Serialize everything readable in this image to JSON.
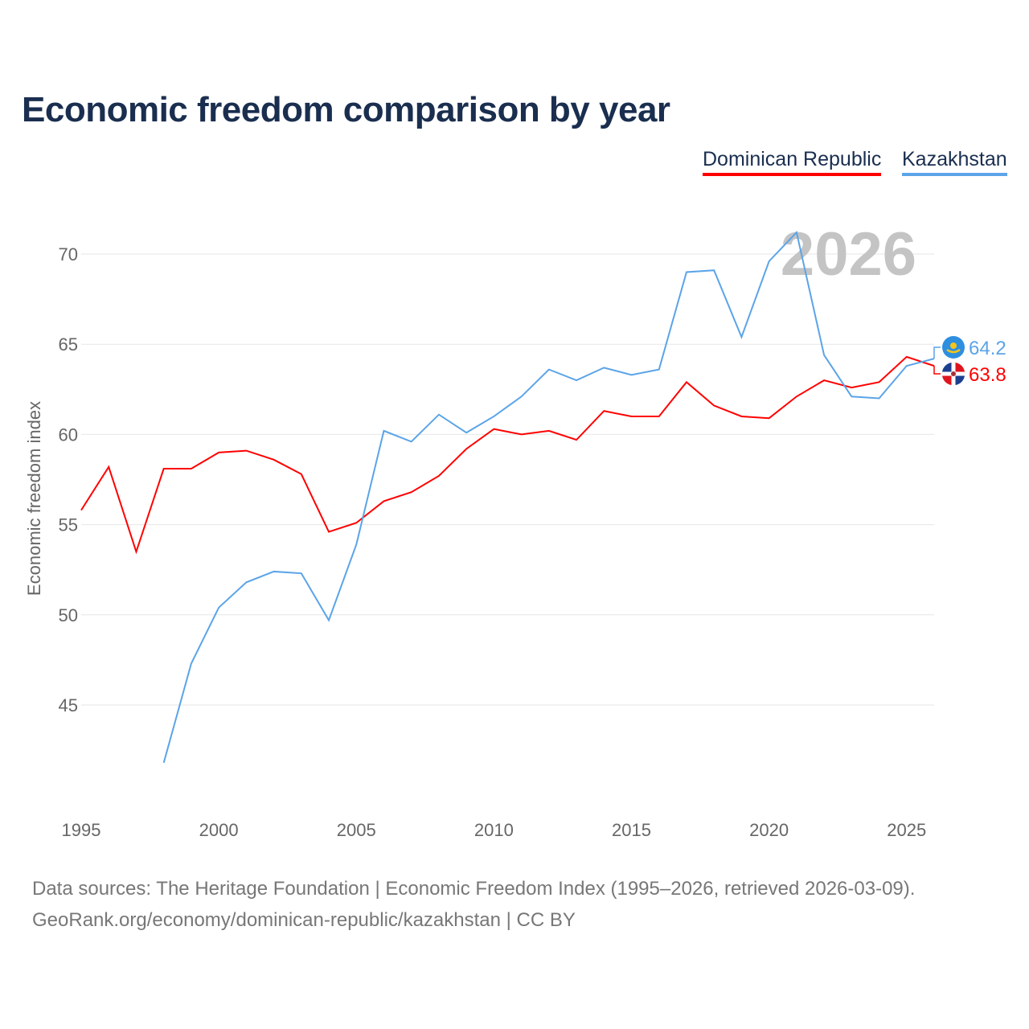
{
  "chart_data": {
    "type": "line",
    "title": "Economic freedom comparison by year",
    "ylabel": "Economic freedom index",
    "xlabel": "",
    "ylim": [
      40.5,
      73
    ],
    "xlim": [
      1995,
      2026
    ],
    "yticks": [
      45,
      50,
      55,
      60,
      65,
      70
    ],
    "xticks": [
      1995,
      2000,
      2005,
      2010,
      2015,
      2020,
      2025
    ],
    "grid": true,
    "legend_position": "top-right",
    "current_year_label": "2026",
    "series": [
      {
        "name": "Dominican Republic",
        "color": "#ff0000",
        "end_label": "63.8",
        "x": [
          1995,
          1996,
          1997,
          1998,
          1999,
          2000,
          2001,
          2002,
          2003,
          2004,
          2005,
          2006,
          2007,
          2008,
          2009,
          2010,
          2011,
          2012,
          2013,
          2014,
          2015,
          2016,
          2017,
          2018,
          2019,
          2020,
          2021,
          2022,
          2023,
          2024,
          2025,
          2026
        ],
        "values": [
          55.8,
          58.2,
          53.5,
          58.1,
          58.1,
          59.0,
          59.1,
          58.6,
          57.8,
          54.6,
          55.1,
          56.3,
          56.8,
          57.7,
          59.2,
          60.3,
          60.0,
          60.2,
          59.7,
          61.3,
          61.0,
          61.0,
          62.9,
          61.6,
          61.0,
          60.9,
          62.1,
          63.0,
          62.6,
          62.9,
          64.3,
          63.8
        ]
      },
      {
        "name": "Kazakhstan",
        "color": "#5ba4e8",
        "end_label": "64.2",
        "x": [
          1998,
          1999,
          2000,
          2001,
          2002,
          2003,
          2004,
          2005,
          2006,
          2007,
          2008,
          2009,
          2010,
          2011,
          2012,
          2013,
          2014,
          2015,
          2016,
          2017,
          2018,
          2019,
          2020,
          2021,
          2022,
          2023,
          2024,
          2025,
          2026
        ],
        "values": [
          41.8,
          47.3,
          50.4,
          51.8,
          52.4,
          52.3,
          49.7,
          53.9,
          60.2,
          59.6,
          61.1,
          60.1,
          61.0,
          62.1,
          63.6,
          63.0,
          63.7,
          63.3,
          63.6,
          69.0,
          69.1,
          65.4,
          69.6,
          71.2,
          64.4,
          62.1,
          62.0,
          63.8,
          64.2
        ]
      }
    ]
  },
  "footer": {
    "line1": "Data sources: The Heritage Foundation | Economic Freedom Index (1995–2026, retrieved 2026-03-09).",
    "line2": "GeoRank.org/economy/dominican-republic/kazakhstan | CC BY"
  }
}
